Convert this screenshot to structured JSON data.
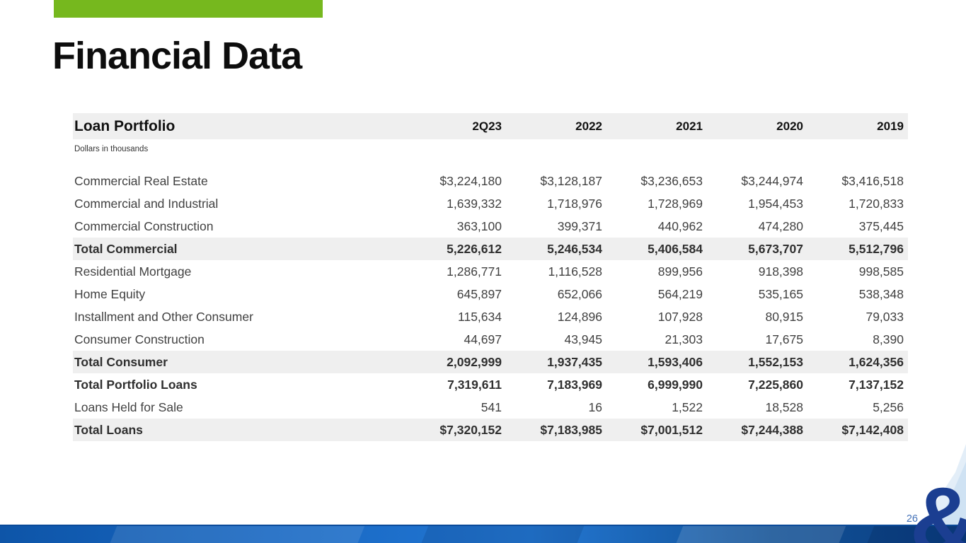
{
  "slide": {
    "title": "Financial Data",
    "page_number": "26",
    "ampersand": "&",
    "accent_green": "#76b81e",
    "brand_blue": "#1b3e91",
    "footer_blue": "#1767c2"
  },
  "table": {
    "title": "Loan Portfolio",
    "subtitle": "Dollars in thousands",
    "columns": [
      "2Q23",
      "2022",
      "2021",
      "2020",
      "2019"
    ],
    "rows": [
      {
        "label": "Commercial Real Estate",
        "values": [
          "$3,224,180",
          "$3,128,187",
          "$3,236,653",
          "$3,244,974",
          "$3,416,518"
        ],
        "style": ""
      },
      {
        "label": "Commercial and Industrial",
        "values": [
          "1,639,332",
          "1,718,976",
          "1,728,969",
          "1,954,453",
          "1,720,833"
        ],
        "style": ""
      },
      {
        "label": "Commercial Construction",
        "values": [
          "363,100",
          "399,371",
          "440,962",
          "474,280",
          "375,445"
        ],
        "style": ""
      },
      {
        "label": "Total Commercial",
        "values": [
          "5,226,612",
          "5,246,534",
          "5,406,584",
          "5,673,707",
          "5,512,796"
        ],
        "style": "shaded-total"
      },
      {
        "label": "Residential Mortgage",
        "values": [
          "1,286,771",
          "1,116,528",
          "899,956",
          "918,398",
          "998,585"
        ],
        "style": ""
      },
      {
        "label": "Home Equity",
        "values": [
          "645,897",
          "652,066",
          "564,219",
          "535,165",
          "538,348"
        ],
        "style": ""
      },
      {
        "label": "Installment and Other Consumer",
        "values": [
          "115,634",
          "124,896",
          "107,928",
          "80,915",
          "79,033"
        ],
        "style": ""
      },
      {
        "label": "Consumer Construction",
        "values": [
          "44,697",
          "43,945",
          "21,303",
          "17,675",
          "8,390"
        ],
        "style": ""
      },
      {
        "label": "Total Consumer",
        "values": [
          "2,092,999",
          "1,937,435",
          "1,593,406",
          "1,552,153",
          "1,624,356"
        ],
        "style": "shaded-total"
      },
      {
        "label": "Total Portfolio Loans",
        "values": [
          "7,319,611",
          "7,183,969",
          "6,999,990",
          "7,225,860",
          "7,137,152"
        ],
        "style": "total"
      },
      {
        "label": "Loans Held for Sale",
        "values": [
          "541",
          "16",
          "1,522",
          "18,528",
          "5,256"
        ],
        "style": ""
      },
      {
        "label": "Total Loans",
        "values": [
          "$7,320,152",
          "$7,183,985",
          "$7,001,512",
          "$7,244,388",
          "$7,142,408"
        ],
        "style": "shaded-total"
      }
    ]
  }
}
